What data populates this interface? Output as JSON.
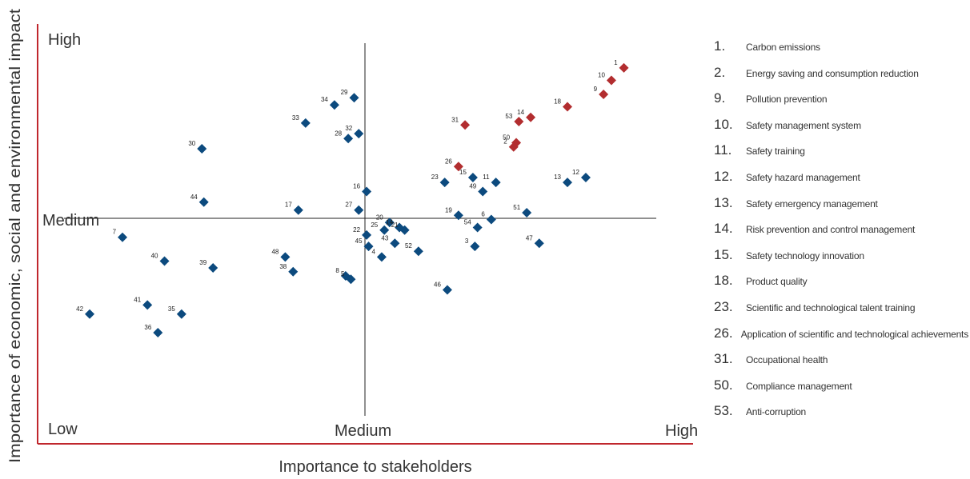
{
  "colors": {
    "axis_red": "#c0272d",
    "material": "#b22d2f",
    "other": "#0c4a7e",
    "text": "#333333"
  },
  "chart_data": {
    "type": "scatter",
    "xlabel": "Importance to stakeholders",
    "ylabel": "Importance of economic, social and environmental impact",
    "x_ticks": {
      "low": "Low",
      "medium": "Medium",
      "high": "High"
    },
    "y_ticks": {
      "high": "High",
      "medium": "Medium"
    },
    "xlim": [
      0,
      10
    ],
    "ylim": [
      0,
      10
    ],
    "grid": false,
    "points": [
      {
        "id": "1",
        "x": 8.36,
        "y": 9.2,
        "material": true
      },
      {
        "id": "10",
        "x": 8.17,
        "y": 8.87,
        "material": true
      },
      {
        "id": "9",
        "x": 8.05,
        "y": 8.5,
        "material": true
      },
      {
        "id": "18",
        "x": 7.5,
        "y": 8.17,
        "material": true
      },
      {
        "id": "14",
        "x": 6.94,
        "y": 7.89,
        "material": true
      },
      {
        "id": "53",
        "x": 6.76,
        "y": 7.78,
        "material": true
      },
      {
        "id": "31",
        "x": 5.94,
        "y": 7.69,
        "material": true
      },
      {
        "id": "50",
        "x": 6.72,
        "y": 7.22,
        "material": true
      },
      {
        "id": "2",
        "x": 6.68,
        "y": 7.11,
        "material": true
      },
      {
        "id": "26",
        "x": 5.84,
        "y": 6.59,
        "material": true
      },
      {
        "id": "29",
        "x": 4.25,
        "y": 8.41,
        "material": false
      },
      {
        "id": "34",
        "x": 3.95,
        "y": 8.22,
        "material": false
      },
      {
        "id": "33",
        "x": 3.51,
        "y": 7.74,
        "material": false
      },
      {
        "id": "32",
        "x": 4.32,
        "y": 7.46,
        "material": false
      },
      {
        "id": "28",
        "x": 4.16,
        "y": 7.33,
        "material": false
      },
      {
        "id": "30",
        "x": 1.93,
        "y": 7.06,
        "material": false
      },
      {
        "id": "15",
        "x": 6.06,
        "y": 6.3,
        "material": false
      },
      {
        "id": "11",
        "x": 6.41,
        "y": 6.17,
        "material": false
      },
      {
        "id": "23",
        "x": 5.63,
        "y": 6.17,
        "material": false
      },
      {
        "id": "49",
        "x": 6.21,
        "y": 5.93,
        "material": false
      },
      {
        "id": "12",
        "x": 7.78,
        "y": 6.3,
        "material": false
      },
      {
        "id": "13",
        "x": 7.5,
        "y": 6.17,
        "material": false
      },
      {
        "id": "16",
        "x": 4.44,
        "y": 5.93,
        "material": false
      },
      {
        "id": "44",
        "x": 1.96,
        "y": 5.65,
        "material": false
      },
      {
        "id": "17",
        "x": 3.4,
        "y": 5.44,
        "material": false
      },
      {
        "id": "27",
        "x": 4.32,
        "y": 5.44,
        "material": false
      },
      {
        "id": "19",
        "x": 5.84,
        "y": 5.3,
        "material": false
      },
      {
        "id": "6",
        "x": 6.34,
        "y": 5.19,
        "material": false
      },
      {
        "id": "51",
        "x": 6.88,
        "y": 5.37,
        "material": false
      },
      {
        "id": "20",
        "x": 4.79,
        "y": 5.11,
        "material": false
      },
      {
        "id": "14",
        "x": 4.94,
        "y": 4.98,
        "material": false
      },
      {
        "id": "25",
        "x": 4.71,
        "y": 4.91,
        "material": false
      },
      {
        "id": "21",
        "x": 5.02,
        "y": 4.91,
        "material": false
      },
      {
        "id": "54",
        "x": 6.13,
        "y": 4.98,
        "material": false
      },
      {
        "id": "22",
        "x": 4.44,
        "y": 4.78,
        "material": false
      },
      {
        "id": "45",
        "x": 4.47,
        "y": 4.48,
        "material": false
      },
      {
        "id": "43",
        "x": 4.87,
        "y": 4.56,
        "material": false
      },
      {
        "id": "3",
        "x": 6.09,
        "y": 4.48,
        "material": false
      },
      {
        "id": "47",
        "x": 7.07,
        "y": 4.56,
        "material": false
      },
      {
        "id": "52",
        "x": 5.23,
        "y": 4.35,
        "material": false
      },
      {
        "id": "4",
        "x": 4.67,
        "y": 4.2,
        "material": false
      },
      {
        "id": "7",
        "x": 0.72,
        "y": 4.72,
        "material": false
      },
      {
        "id": "48",
        "x": 3.2,
        "y": 4.2,
        "material": false
      },
      {
        "id": "40",
        "x": 1.36,
        "y": 4.09,
        "material": false
      },
      {
        "id": "39",
        "x": 2.1,
        "y": 3.91,
        "material": false
      },
      {
        "id": "38",
        "x": 3.32,
        "y": 3.81,
        "material": false
      },
      {
        "id": "8",
        "x": 4.12,
        "y": 3.7,
        "material": false
      },
      {
        "id": "5",
        "x": 4.2,
        "y": 3.61,
        "material": false
      },
      {
        "id": "46",
        "x": 5.67,
        "y": 3.33,
        "material": false
      },
      {
        "id": "41",
        "x": 1.1,
        "y": 2.93,
        "material": false
      },
      {
        "id": "35",
        "x": 1.62,
        "y": 2.69,
        "material": false
      },
      {
        "id": "42",
        "x": 0.22,
        "y": 2.69,
        "material": false
      },
      {
        "id": "36",
        "x": 1.26,
        "y": 2.2,
        "material": false
      }
    ],
    "legend": [
      {
        "num": "1.",
        "label": "Carbon emissions"
      },
      {
        "num": "2.",
        "label": "Energy saving and consumption reduction"
      },
      {
        "num": "9.",
        "label": "Pollution prevention"
      },
      {
        "num": "10.",
        "label": "Safety management system"
      },
      {
        "num": "11.",
        "label": "Safety training"
      },
      {
        "num": "12.",
        "label": "Safety hazard management"
      },
      {
        "num": "13.",
        "label": "Safety emergency management"
      },
      {
        "num": "14.",
        "label": "Risk prevention and control management"
      },
      {
        "num": "15.",
        "label": "Safety technology innovation"
      },
      {
        "num": "18.",
        "label": "Product quality"
      },
      {
        "num": "23.",
        "label": "Scientific and technological talent training"
      },
      {
        "num": "26.",
        "label": "Application of scientific and technological achievements"
      },
      {
        "num": "31.",
        "label": "Occupational health"
      },
      {
        "num": "50.",
        "label": "Compliance management"
      },
      {
        "num": "53.",
        "label": "Anti-corruption"
      }
    ]
  }
}
